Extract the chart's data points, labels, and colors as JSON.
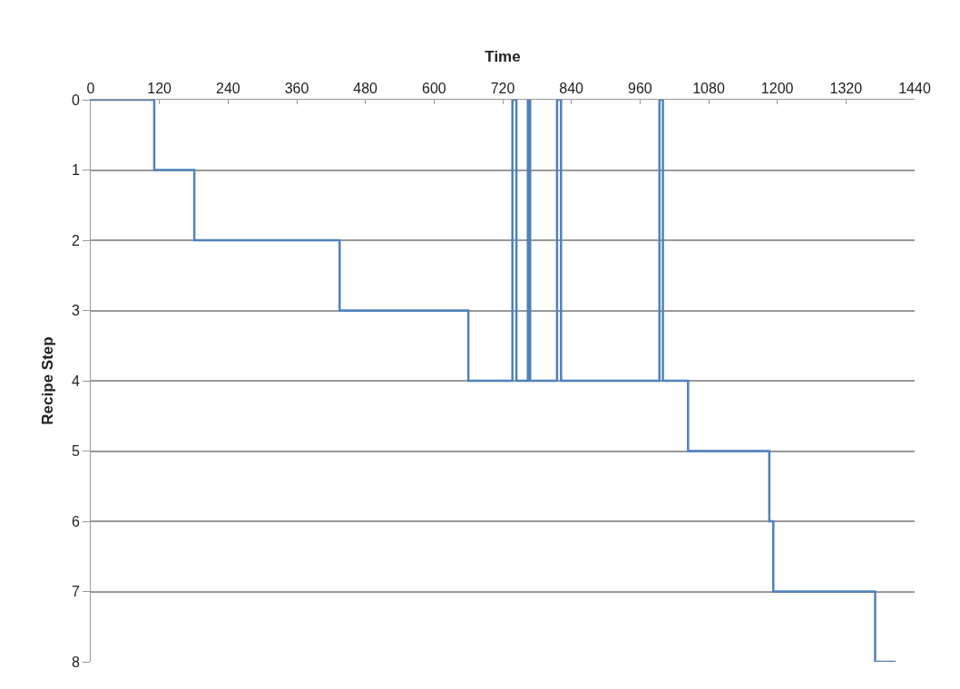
{
  "chart_data": {
    "type": "step",
    "xlabel": "Time",
    "ylabel": "Recipe Step",
    "x": [
      0,
      111,
      181,
      435,
      660,
      737,
      744,
      764,
      768,
      815,
      822,
      994,
      1000,
      1044,
      1186,
      1193,
      1371,
      1407
    ],
    "series": [
      {
        "color": "#4f81bd",
        "values": [
          0,
          1,
          2,
          3,
          4,
          0,
          4,
          0,
          4,
          0,
          4,
          0,
          4,
          5,
          6,
          7,
          8,
          8
        ]
      }
    ],
    "xlim": [
      0,
      1440
    ],
    "xticks": [
      0,
      120,
      240,
      360,
      480,
      600,
      720,
      840,
      960,
      1080,
      1200,
      1320,
      1440
    ],
    "ylim": [
      8,
      0
    ],
    "yticks": [
      0,
      1,
      2,
      3,
      4,
      5,
      6,
      7,
      8
    ],
    "grid": "y",
    "legend": false,
    "marker": "none",
    "line_style": "solid"
  }
}
